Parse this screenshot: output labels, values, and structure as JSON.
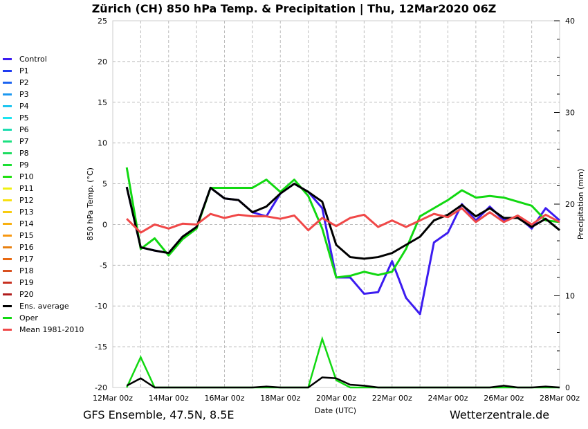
{
  "chart_data": {
    "type": "line",
    "title": "Zürich  (CH)  850 hPa Temp. & Precipitation | Thu, 12Mar2020 06Z",
    "xlabel": "Date (UTC)",
    "ylabel": "850 hPa Temp. (°C)",
    "y2label": "Precipitation (mm)",
    "ylim": [
      -20,
      25
    ],
    "y2lim": [
      0,
      40
    ],
    "xlim_days": [
      0,
      16
    ],
    "grid": true,
    "legend_position": "left-outside",
    "x_tick_labels": [
      "12Mar 00z",
      "14Mar 00z",
      "16Mar 00z",
      "18Mar 00z",
      "20Mar 00z",
      "22Mar 00z",
      "24Mar 00z",
      "26Mar 00z",
      "28Mar 00z"
    ],
    "y_ticks": [
      -20,
      -15,
      -10,
      -5,
      0,
      5,
      10,
      15,
      20,
      25
    ],
    "y2_ticks": [
      0,
      10,
      20,
      30,
      40
    ],
    "x_days": [
      0.5,
      1,
      1.5,
      2,
      2.5,
      3,
      3.5,
      4,
      4.5,
      5,
      5.5,
      6,
      6.5,
      7,
      7.5,
      8,
      8.5,
      9,
      9.5,
      10,
      10.5,
      11,
      11.5,
      12,
      12.5,
      13,
      13.5,
      14,
      14.5,
      15,
      15.5,
      16
    ],
    "series": [
      {
        "name": "Control",
        "color": "#3c1cf0",
        "width": 3,
        "values": [
          4.6,
          -2.8,
          -3.2,
          -3.5,
          -1.5,
          -0.3,
          4.5,
          3.2,
          3.0,
          1.5,
          1.0,
          3.8,
          5.0,
          4.0,
          2.0,
          -6.5,
          -6.5,
          -8.5,
          -8.3,
          -4.5,
          -9,
          -11,
          -2.2,
          -1,
          2.5,
          0.5,
          2.2,
          0.5,
          1.0,
          -0.5,
          2.0,
          0.5
        ]
      },
      {
        "name": "Oper",
        "color": "#11d811",
        "width": 3,
        "values": [
          7,
          -3,
          -1.7,
          -3.8,
          -1.8,
          -0.5,
          4.5,
          4.5,
          4.5,
          4.5,
          5.5,
          4,
          5.5,
          3.5,
          -0.5,
          -6.5,
          -6.3,
          -5.8,
          -6.2,
          -5.8,
          -3,
          1,
          2,
          3,
          4.2,
          3.3,
          3.5,
          3.3,
          2.8,
          2.3,
          0.5,
          0.3
        ]
      },
      {
        "name": "Ens. average",
        "color": "#000000",
        "width": 3,
        "values": [
          4.6,
          -2.8,
          -3.2,
          -3.5,
          -1.5,
          -0.3,
          4.5,
          3.2,
          3.0,
          1.5,
          2.2,
          3.8,
          5.0,
          4.0,
          2.8,
          -2.5,
          -4.0,
          -4.2,
          -4.0,
          -3.5,
          -2.5,
          -1.5,
          0.5,
          1.2,
          2.4,
          1.0,
          2.0,
          0.8,
          0.8,
          -0.3,
          0.7,
          -0.7
        ]
      },
      {
        "name": "Mean 1981-2010",
        "color": "#f04848",
        "width": 3,
        "values": [
          0.7,
          -1,
          0,
          -0.5,
          0.1,
          0,
          1.3,
          0.8,
          1.2,
          1,
          1,
          0.7,
          1.1,
          -0.7,
          0.8,
          -0.2,
          0.8,
          1.2,
          -0.3,
          0.5,
          -0.3,
          0.5,
          1.3,
          0.9,
          2,
          0.3,
          1.5,
          0.3,
          1.1,
          0,
          1.2,
          0.3
        ]
      }
    ],
    "precip_series": [
      {
        "name": "Oper",
        "color": "#11d811",
        "values": [
          0,
          3.3,
          0,
          0,
          0,
          0,
          0,
          0,
          0,
          0,
          0,
          0,
          0,
          0,
          5.3,
          0.8,
          0,
          0,
          0,
          0,
          0,
          0,
          0,
          0,
          0,
          0,
          0,
          0,
          0,
          0,
          0,
          0
        ]
      },
      {
        "name": "Ens. average",
        "color": "#000000",
        "values": [
          0.2,
          1,
          0,
          0,
          0,
          0,
          0,
          0,
          0,
          0,
          0.1,
          0,
          0,
          0,
          1.1,
          1,
          0.3,
          0.2,
          0,
          0,
          0,
          0,
          0,
          0,
          0,
          0,
          0,
          0.2,
          0,
          0,
          0.1,
          0
        ]
      }
    ],
    "legend": [
      {
        "label": "Control",
        "color": "#3c1cf0"
      },
      {
        "label": "P1",
        "color": "#1f3cf0"
      },
      {
        "label": "P2",
        "color": "#1c64f0"
      },
      {
        "label": "P3",
        "color": "#1c98f0"
      },
      {
        "label": "P4",
        "color": "#1cc4f0"
      },
      {
        "label": "P5",
        "color": "#1ce4f0"
      },
      {
        "label": "P6",
        "color": "#1cdcb0"
      },
      {
        "label": "P7",
        "color": "#1ce080"
      },
      {
        "label": "P8",
        "color": "#1cdc60"
      },
      {
        "label": "P9",
        "color": "#1ce034"
      },
      {
        "label": "P10",
        "color": "#20e010"
      },
      {
        "label": "P11",
        "color": "#f0f010"
      },
      {
        "label": "P12",
        "color": "#f8e010"
      },
      {
        "label": "P13",
        "color": "#f8cc10"
      },
      {
        "label": "P14",
        "color": "#f8b010"
      },
      {
        "label": "P15",
        "color": "#f89810"
      },
      {
        "label": "P16",
        "color": "#e88010"
      },
      {
        "label": "P17",
        "color": "#e86810"
      },
      {
        "label": "P18",
        "color": "#d85020"
      },
      {
        "label": "P19",
        "color": "#c83020"
      },
      {
        "label": "P20",
        "color": "#b01c1c"
      },
      {
        "label": "Ens. average",
        "color": "#000000"
      },
      {
        "label": "Oper",
        "color": "#11d811"
      },
      {
        "label": "Mean 1981-2010",
        "color": "#f04848"
      }
    ]
  },
  "footer": {
    "left": "GFS Ensemble, 47.5N, 8.5E",
    "right": "Wetterzentrale.de"
  }
}
